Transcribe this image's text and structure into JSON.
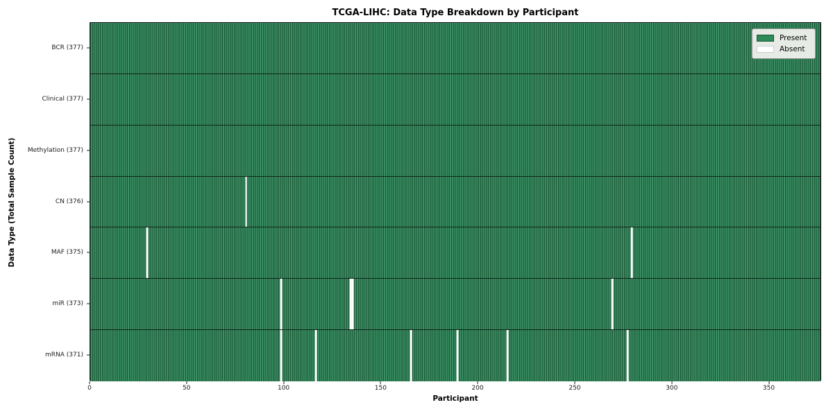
{
  "title": "TCGA-LIHC: Data Type Breakdown by Participant",
  "xlabel": "Participant",
  "ylabel": "Data Type (Total Sample Count)",
  "legend": {
    "present_label": "Present",
    "absent_label": "Absent"
  },
  "colors": {
    "present_fill": "#3a9064",
    "present_edge": "#1b5233",
    "absent": "#ffffff",
    "axis": "#1a1a1a",
    "legend_bg": "#e7ebe6",
    "legend_border": "#9b9b9b",
    "legend_swatch_green": "#2e8b57"
  },
  "chart_data": {
    "type": "heatmap",
    "title": "TCGA-LIHC: Data Type Breakdown by Participant",
    "xlabel": "Participant",
    "ylabel": "Data Type (Total Sample Count)",
    "n_participants": 377,
    "xlim": [
      0,
      377
    ],
    "x_ticks": [
      0,
      50,
      100,
      150,
      200,
      250,
      300,
      350
    ],
    "legend_position": "upper right",
    "grid": false,
    "rows": [
      {
        "label": "BCR (377)",
        "data_type": "BCR",
        "total": 377,
        "absent_participants": []
      },
      {
        "label": "Clinical (377)",
        "data_type": "Clinical",
        "total": 377,
        "absent_participants": []
      },
      {
        "label": "Methylation (377)",
        "data_type": "Methylation",
        "total": 377,
        "absent_participants": []
      },
      {
        "label": "CN (376)",
        "data_type": "CN",
        "total": 376,
        "absent_participants": [
          80
        ]
      },
      {
        "label": "MAF (375)",
        "data_type": "MAF",
        "total": 375,
        "absent_participants": [
          29,
          279
        ]
      },
      {
        "label": "miR (373)",
        "data_type": "miR",
        "total": 373,
        "absent_participants": [
          98,
          134,
          135,
          269
        ]
      },
      {
        "label": "mRNA (371)",
        "data_type": "mRNA",
        "total": 371,
        "absent_participants": [
          98,
          116,
          165,
          189,
          215,
          277
        ]
      }
    ]
  }
}
